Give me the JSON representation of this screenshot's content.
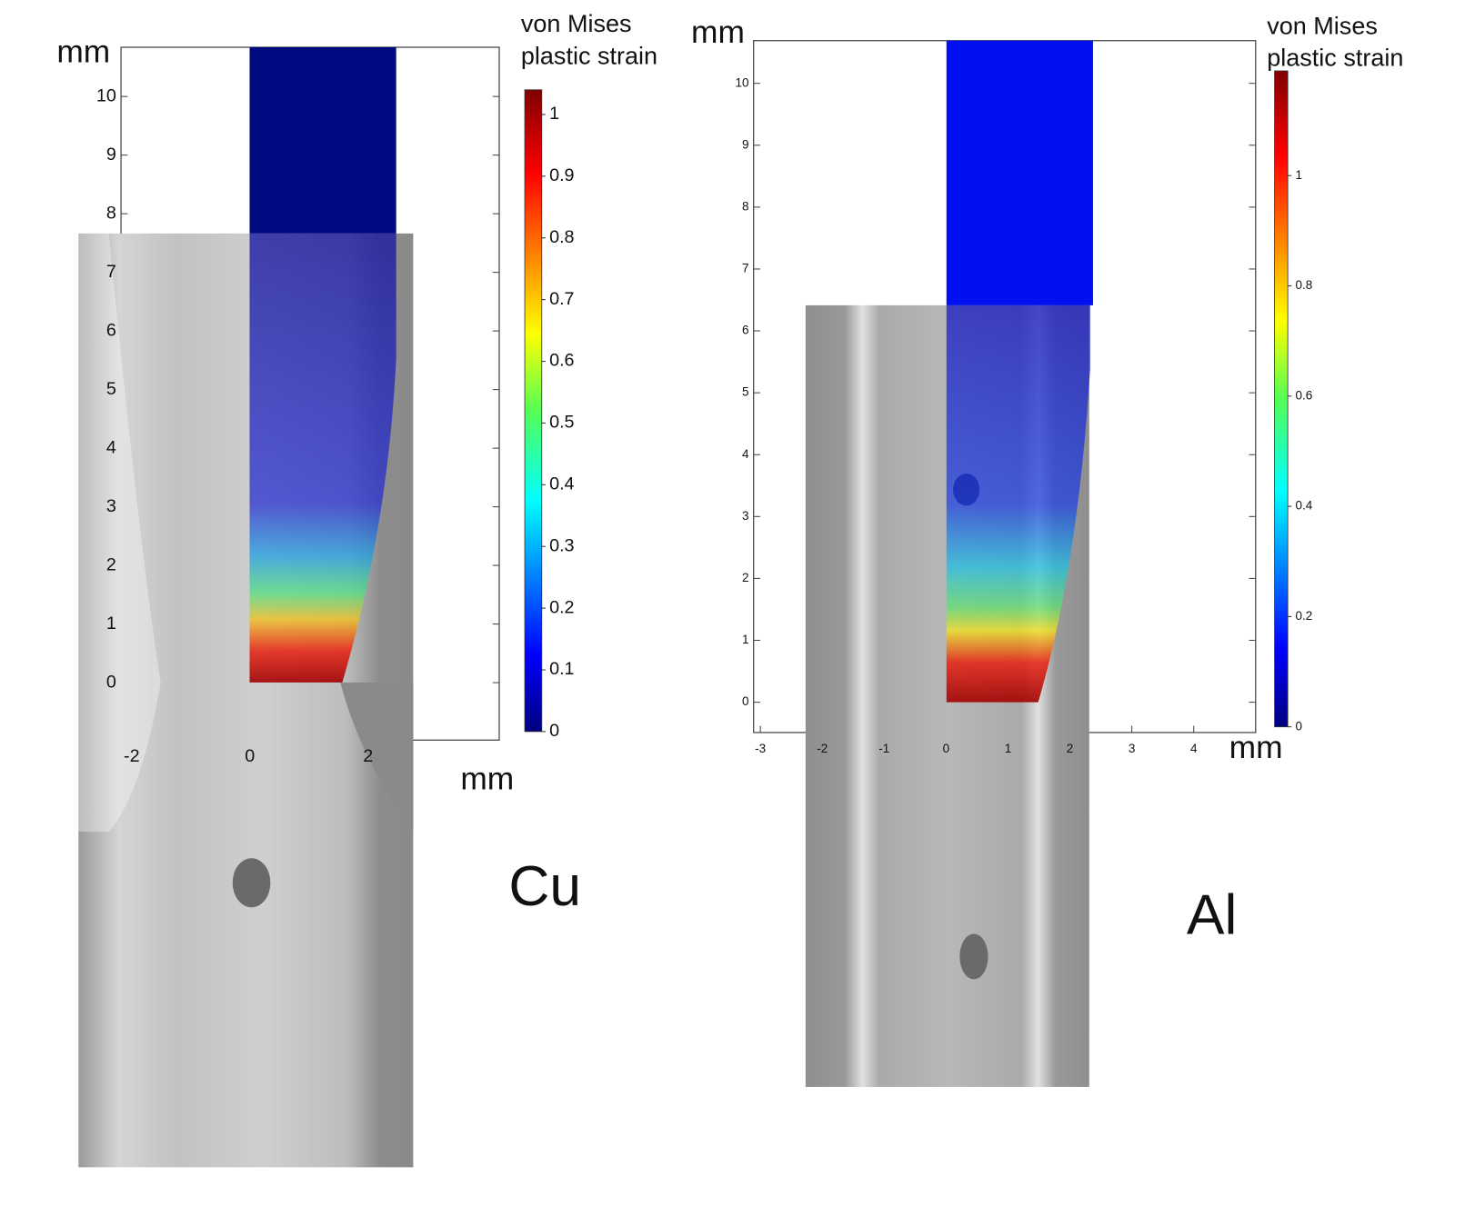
{
  "chart_data": [
    {
      "type": "contour",
      "title": "Cu",
      "xlabel": "mm",
      "ylabel": "mm",
      "colorbar_label": [
        "von Mises",
        "plastic strain"
      ],
      "colormap": "jet",
      "xlim": [
        -2.18,
        4.22
      ],
      "xticks": [
        -2,
        0,
        2
      ],
      "ylim": [
        -0.98,
        10.84
      ],
      "yticks": [
        0,
        1,
        2,
        3,
        4,
        5,
        6,
        7,
        8,
        9,
        10
      ],
      "clim": [
        0,
        1.04
      ],
      "cticks": [
        0,
        0.1,
        0.2,
        0.3,
        0.4,
        0.5,
        0.6,
        0.7,
        0.8,
        0.9,
        1
      ]
    },
    {
      "type": "contour",
      "title": "Al",
      "xlabel": "mm",
      "ylabel": "mm",
      "colorbar_label": [
        "von Mises",
        "plastic strain"
      ],
      "colormap": "jet",
      "xlim": [
        -3.11,
        5.0
      ],
      "xticks": [
        -3,
        -2,
        -1,
        0,
        1,
        2,
        3,
        4
      ],
      "ylim": [
        -0.49,
        10.69
      ],
      "yticks": [
        0,
        1,
        2,
        3,
        4,
        5,
        6,
        7,
        8,
        9,
        10
      ],
      "clim": [
        0,
        1.19
      ],
      "cticks": [
        0,
        0.2,
        0.4,
        0.6,
        0.8,
        1
      ]
    }
  ]
}
